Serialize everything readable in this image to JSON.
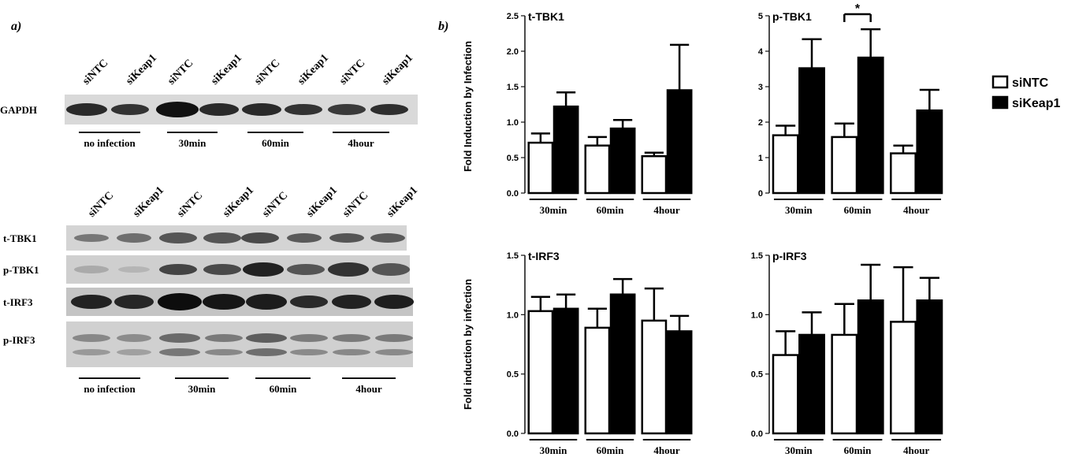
{
  "panel_a_label": "a)",
  "panel_b_label": "b)",
  "blot_top": {
    "lanes": [
      "siNTC",
      "siKeap1",
      "siNTC",
      "siKeap1",
      "siNTC",
      "siKeap1",
      "siNTC",
      "siKeap1"
    ],
    "rows": [
      "GAPDH"
    ],
    "groups": [
      "no infection",
      "30min",
      "60min",
      "4hour"
    ]
  },
  "blot_bottom": {
    "lanes": [
      "siNTC",
      "siKeap1",
      "siNTC",
      "siKeap1",
      "siNTC",
      "siKeap1",
      "siNTC",
      "siKeap1"
    ],
    "rows": [
      "t-TBK1",
      "p-TBK1",
      "t-IRF3",
      "p-IRF3"
    ],
    "groups": [
      "no infection",
      "30min",
      "60min",
      "4hour"
    ]
  },
  "legend": {
    "open_label": "siNTC",
    "filled_label": "siKeap1"
  },
  "row_ylabels": [
    "Fold Induction by Infection",
    "Fold induction by infection"
  ],
  "significance_mark": "*",
  "chart_data": [
    {
      "type": "bar",
      "title": "t-TBK1",
      "categories": [
        "30min",
        "60min",
        "4hour"
      ],
      "ylim": [
        0,
        2.5
      ],
      "yticks": [
        "0.0",
        "0.5",
        "1.0",
        "1.5",
        "2.0",
        "2.5"
      ],
      "series": [
        {
          "name": "siNTC",
          "values": [
            0.71,
            0.67,
            0.52
          ],
          "errors": [
            0.13,
            0.12,
            0.05
          ]
        },
        {
          "name": "siKeap1",
          "values": [
            1.22,
            0.91,
            1.45
          ],
          "errors": [
            0.2,
            0.12,
            0.64
          ]
        }
      ]
    },
    {
      "type": "bar",
      "title": "p-TBK1",
      "categories": [
        "30min",
        "60min",
        "4hour"
      ],
      "ylim": [
        0,
        5
      ],
      "yticks": [
        "0",
        "1",
        "2",
        "3",
        "4",
        "5"
      ],
      "series": [
        {
          "name": "siNTC",
          "values": [
            1.63,
            1.58,
            1.12
          ],
          "errors": [
            0.27,
            0.38,
            0.22
          ]
        },
        {
          "name": "siKeap1",
          "values": [
            3.52,
            3.82,
            2.33
          ],
          "errors": [
            0.82,
            0.8,
            0.58
          ]
        }
      ]
    },
    {
      "type": "bar",
      "title": "t-IRF3",
      "categories": [
        "30min",
        "60min",
        "4hour"
      ],
      "ylim": [
        0,
        1.5
      ],
      "yticks": [
        "0.0",
        "0.5",
        "1.0",
        "1.5"
      ],
      "series": [
        {
          "name": "siNTC",
          "values": [
            1.03,
            0.89,
            0.95
          ],
          "errors": [
            0.12,
            0.16,
            0.27
          ]
        },
        {
          "name": "siKeap1",
          "values": [
            1.05,
            1.17,
            0.86
          ],
          "errors": [
            0.12,
            0.13,
            0.13
          ]
        }
      ]
    },
    {
      "type": "bar",
      "title": "p-IRF3",
      "categories": [
        "30min",
        "60min",
        "4hour"
      ],
      "ylim": [
        0,
        1.5
      ],
      "yticks": [
        "0.0",
        "0.5",
        "1.0",
        "1.5"
      ],
      "series": [
        {
          "name": "siNTC",
          "values": [
            0.66,
            0.83,
            0.94
          ],
          "errors": [
            0.2,
            0.26,
            0.46
          ]
        },
        {
          "name": "siKeap1",
          "values": [
            0.83,
            1.12,
            1.12
          ],
          "errors": [
            0.19,
            0.3,
            0.19
          ]
        }
      ]
    }
  ]
}
